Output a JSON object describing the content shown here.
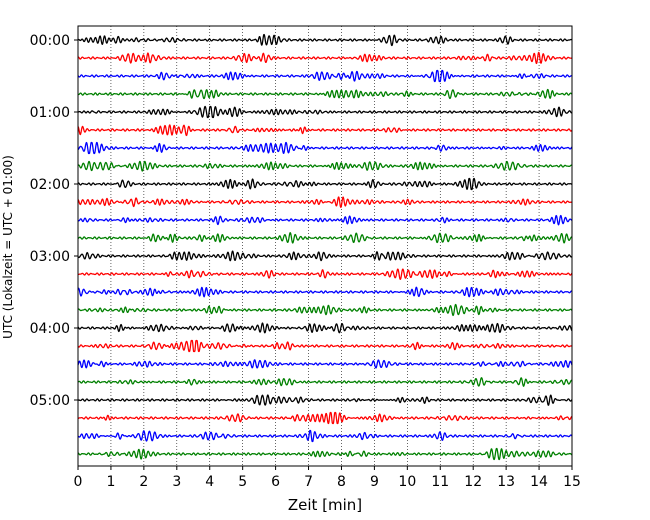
{
  "chart_data": {
    "type": "line",
    "title": "",
    "xlabel": "Zeit  [min]",
    "ylabel": "UTC (Lokalzeit = UTC + 01:00)",
    "xlim": [
      0,
      15
    ],
    "x_ticks": [
      0,
      1,
      2,
      3,
      4,
      5,
      6,
      7,
      8,
      9,
      10,
      11,
      12,
      13,
      14,
      15
    ],
    "grid": "vertical dotted at each minute",
    "legend": "none",
    "row_interval_minutes": 15,
    "row_start": "00:00",
    "row_count": 24,
    "y_tick_labels": [
      "00:00",
      "01:00",
      "02:00",
      "03:00",
      "04:00",
      "05:00"
    ],
    "y_tick_rows": [
      0,
      4,
      8,
      12,
      16,
      20
    ],
    "row_color_cycle": [
      "#000000",
      "#ff0000",
      "#0000ff",
      "#008000"
    ],
    "rows": [
      {
        "start": "00:00",
        "color": "#000000"
      },
      {
        "start": "00:15",
        "color": "#ff0000"
      },
      {
        "start": "00:30",
        "color": "#0000ff"
      },
      {
        "start": "00:45",
        "color": "#008000"
      },
      {
        "start": "01:00",
        "color": "#000000"
      },
      {
        "start": "01:15",
        "color": "#ff0000"
      },
      {
        "start": "01:30",
        "color": "#0000ff"
      },
      {
        "start": "01:45",
        "color": "#008000"
      },
      {
        "start": "02:00",
        "color": "#000000"
      },
      {
        "start": "02:15",
        "color": "#ff0000"
      },
      {
        "start": "02:30",
        "color": "#0000ff"
      },
      {
        "start": "02:45",
        "color": "#008000"
      },
      {
        "start": "03:00",
        "color": "#000000"
      },
      {
        "start": "03:15",
        "color": "#ff0000"
      },
      {
        "start": "03:30",
        "color": "#0000ff"
      },
      {
        "start": "03:45",
        "color": "#008000"
      },
      {
        "start": "04:00",
        "color": "#000000"
      },
      {
        "start": "04:15",
        "color": "#ff0000"
      },
      {
        "start": "04:30",
        "color": "#0000ff"
      },
      {
        "start": "04:45",
        "color": "#008000"
      },
      {
        "start": "05:00",
        "color": "#000000"
      },
      {
        "start": "05:15",
        "color": "#ff0000"
      },
      {
        "start": "05:30",
        "color": "#0000ff"
      },
      {
        "start": "05:45",
        "color": "#008000"
      }
    ]
  }
}
